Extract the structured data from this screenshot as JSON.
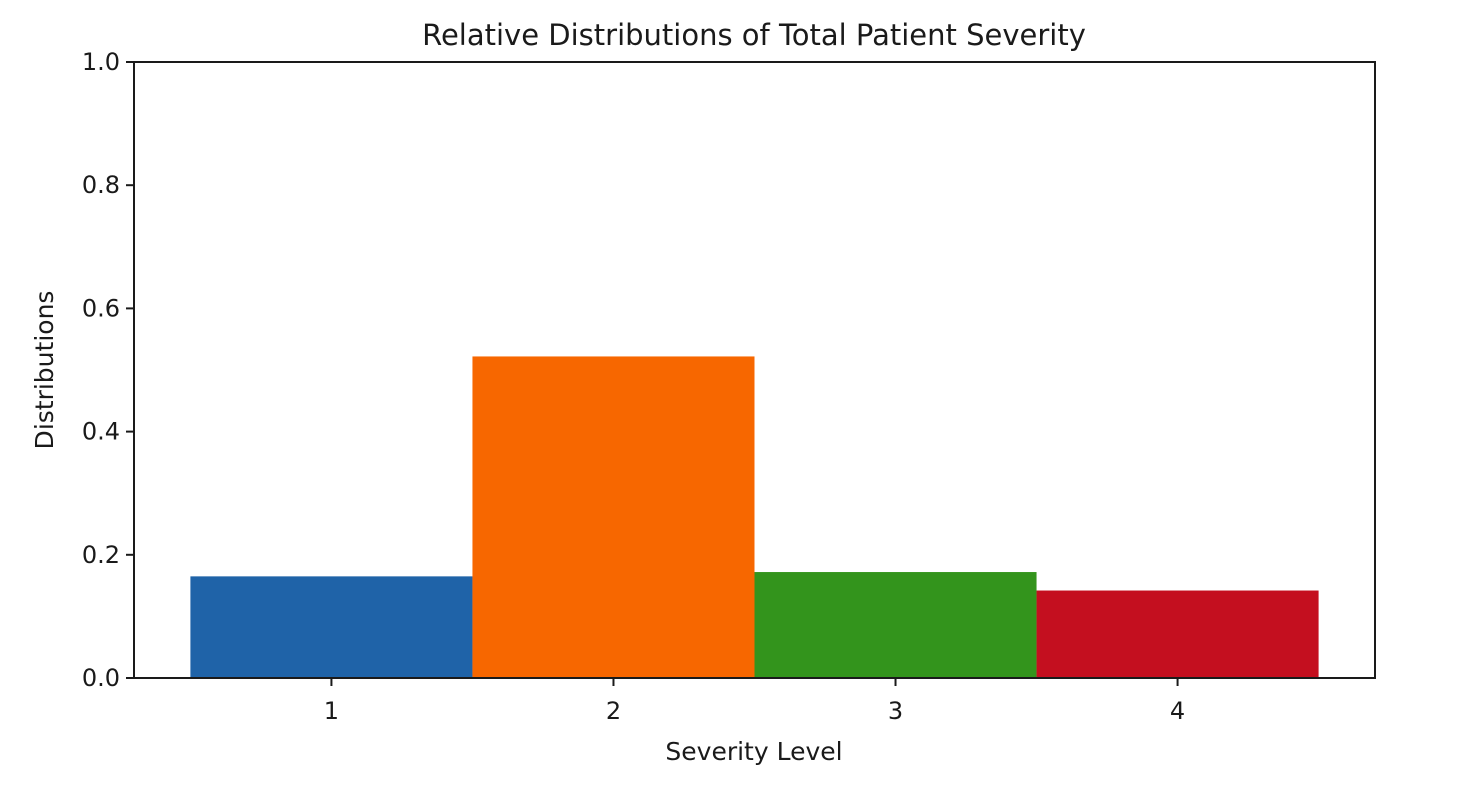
{
  "chart_data": {
    "type": "bar",
    "title": "Relative Distributions of Total Patient Severity",
    "xlabel": "Severity Level",
    "ylabel": "Distributions",
    "categories": [
      "1",
      "2",
      "3",
      "4"
    ],
    "values": [
      0.165,
      0.522,
      0.172,
      0.142
    ],
    "colors": [
      "#1f63a8",
      "#f76700",
      "#33941c",
      "#c40f1f"
    ],
    "ylim": [
      0,
      1.0
    ],
    "xlim": [
      0.3,
      4.7
    ],
    "yticks": [
      "0.0",
      "0.2",
      "0.4",
      "0.6",
      "0.8",
      "1.0"
    ],
    "bar_width": 1.0,
    "grid": false,
    "legend": "none"
  }
}
